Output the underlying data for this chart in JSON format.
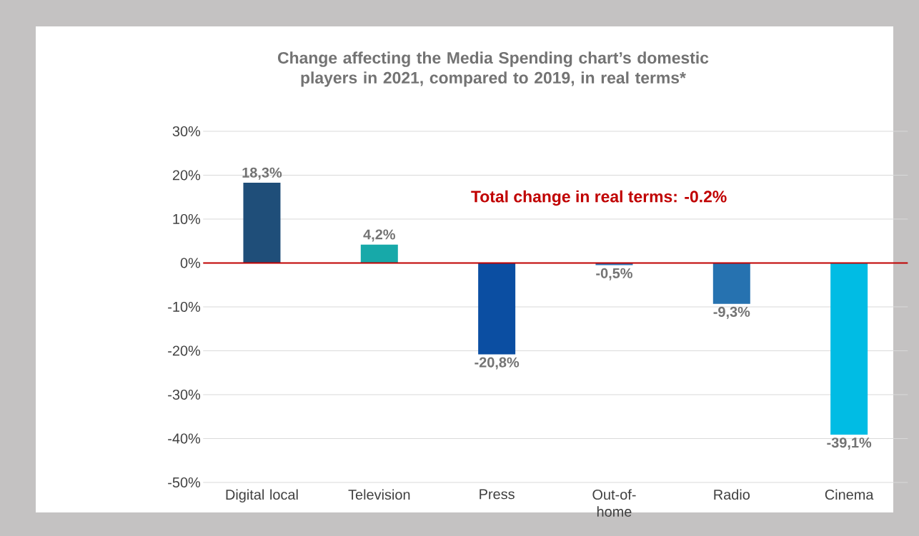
{
  "chart_data": {
    "type": "bar",
    "title": "Change affecting the Media Spending chart’s domestic players in 2021, compared to 2019, in real terms*",
    "categories": [
      "Digital local",
      "Television",
      "Press",
      "Out-of-home",
      "Radio",
      "Cinema"
    ],
    "values": [
      18.3,
      4.2,
      -20.8,
      -0.5,
      -9.3,
      -39.1
    ],
    "colors": [
      "#1f4e79",
      "#17a9a9",
      "#0b4ea2",
      "#2e75b6",
      "#2672b0",
      "#00bce4"
    ],
    "value_labels": [
      "18,3%",
      "4,2%",
      "-20,8%",
      "-0,5%",
      "-9,3%",
      "-39,1%"
    ],
    "ylim": [
      -50,
      30
    ],
    "yticks": [
      {
        "value": -50,
        "label": "-50%"
      },
      {
        "value": -40,
        "label": "-40%"
      },
      {
        "value": -30,
        "label": "-30%"
      },
      {
        "value": -20,
        "label": "-20%"
      },
      {
        "value": -10,
        "label": "-10%"
      },
      {
        "value": 0,
        "label": "0%"
      },
      {
        "value": 10,
        "label": "10%"
      },
      {
        "value": 20,
        "label": "20%"
      },
      {
        "value": 30,
        "label": "30%"
      }
    ],
    "grid": "y",
    "ref_lines": [
      {
        "axis": "y",
        "value": 0,
        "color": "#c00000"
      }
    ],
    "annotations": [
      "Total change in real terms: -0.2%"
    ]
  }
}
